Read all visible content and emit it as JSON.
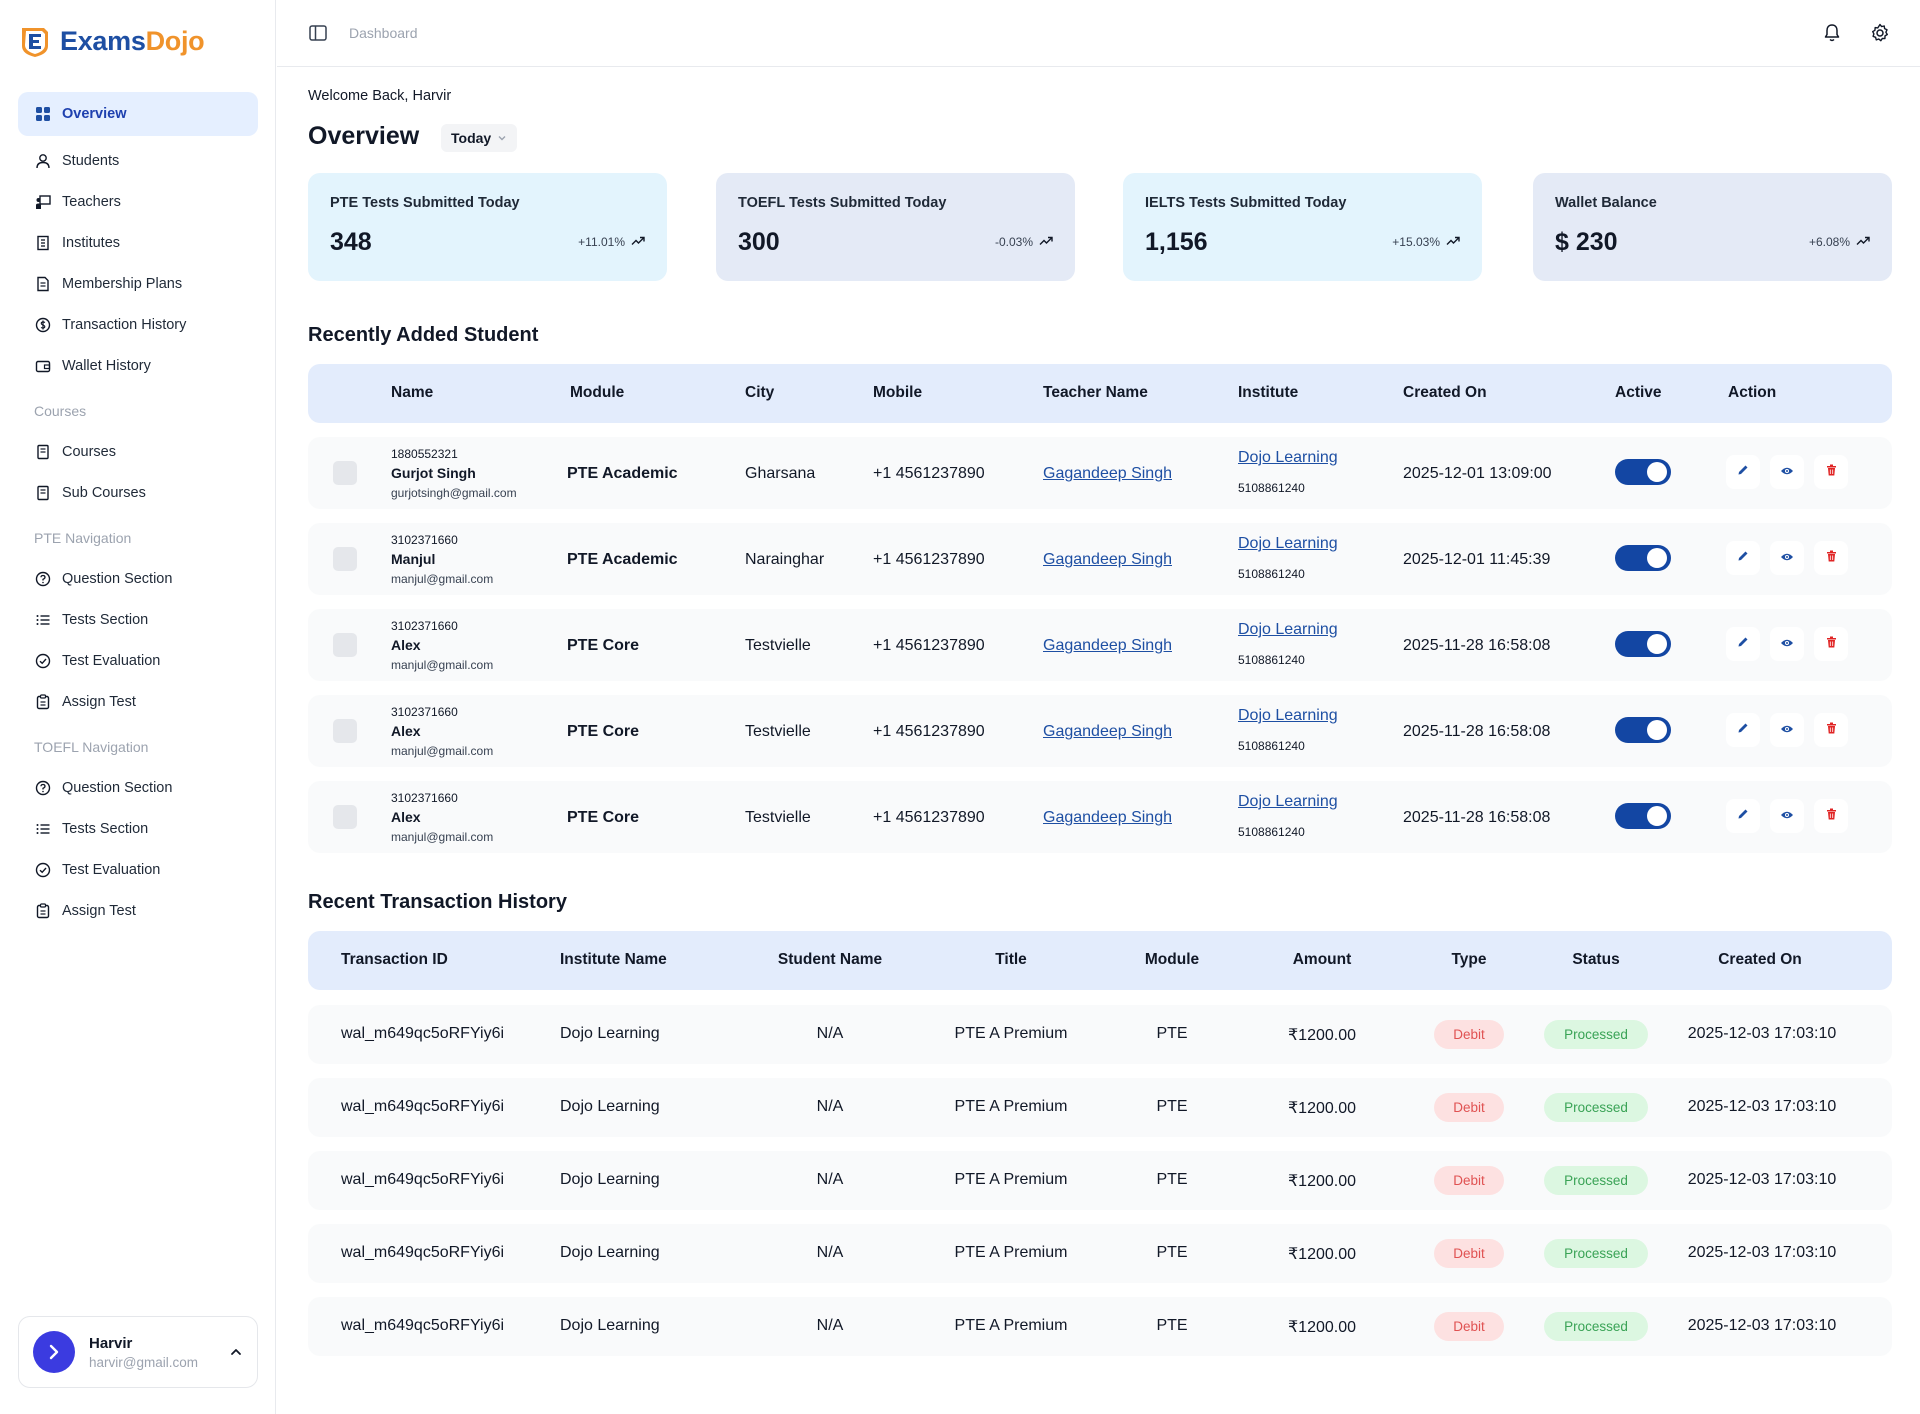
{
  "brand": {
    "part1": "Exams",
    "part2": "Dojo"
  },
  "colors": {
    "primary": "#1346a3",
    "accent": "#f0932b",
    "active_bg": "#e5efff",
    "table_header_bg": "#e3ecfc",
    "debit": "#e05252",
    "processed": "#3aa356"
  },
  "sidebar": {
    "items_main": [
      {
        "label": "Overview",
        "icon": "grid-icon",
        "active": true
      },
      {
        "label": "Students",
        "icon": "user-icon"
      },
      {
        "label": "Teachers",
        "icon": "teacher-icon"
      },
      {
        "label": "Institutes",
        "icon": "building-icon"
      },
      {
        "label": "Membership Plans",
        "icon": "document-icon"
      },
      {
        "label": "Transaction History",
        "icon": "dollar-circle-icon"
      },
      {
        "label": "Wallet History",
        "icon": "wallet-icon"
      }
    ],
    "section_courses": "Courses",
    "items_courses": [
      {
        "label": "Courses",
        "icon": "book-icon"
      },
      {
        "label": "Sub Courses",
        "icon": "book-icon"
      }
    ],
    "section_pte": "PTE Navigation",
    "items_pte": [
      {
        "label": "Question Section",
        "icon": "question-circle-icon"
      },
      {
        "label": "Tests Section",
        "icon": "list-icon"
      },
      {
        "label": "Test Evaluation",
        "icon": "check-circle-icon"
      },
      {
        "label": "Assign Test",
        "icon": "clipboard-icon"
      }
    ],
    "section_toefl": "TOEFL Navigation",
    "items_toefl": [
      {
        "label": "Question Section",
        "icon": "question-circle-icon"
      },
      {
        "label": "Tests Section",
        "icon": "list-icon"
      },
      {
        "label": "Test Evaluation",
        "icon": "check-circle-icon"
      },
      {
        "label": "Assign Test",
        "icon": "clipboard-icon"
      }
    ],
    "user": {
      "name": "Harvir",
      "email": "harvir@gmail.com"
    }
  },
  "topbar": {
    "breadcrumb": "Dashboard"
  },
  "main": {
    "welcome": "Welcome Back, Harvir",
    "title": "Overview",
    "range": "Today",
    "stats": [
      {
        "label": "PTE Tests Submitted Today",
        "value": "348",
        "delta": "+11.01%",
        "bg": "#e3f4fd"
      },
      {
        "label": "TOEFL Tests Submitted Today",
        "value": "300",
        "delta": "-0.03%",
        "bg": "#e4eaf6"
      },
      {
        "label": "IELTS Tests Submitted Today",
        "value": "1,156",
        "delta": "+15.03%",
        "bg": "#e3f4fd"
      },
      {
        "label": "Wallet Balance",
        "value": "$ 230",
        "delta": "+6.08%",
        "bg": "#e4eaf6"
      }
    ],
    "students_title": "Recently Added Student",
    "student_columns": [
      "Name",
      "Module",
      "City",
      "Mobile",
      "Teacher Name",
      "Institute",
      "Created On",
      "Active",
      "Action"
    ],
    "students": [
      {
        "id": "1880552321",
        "name": "Gurjot Singh",
        "email": "gurjotsingh@gmail.com",
        "module": "PTE Academic",
        "city": "Gharsana",
        "mobile": "+1 4561237890",
        "teacher": "Gagandeep Singh",
        "institute": "Dojo Learning",
        "institute_id": "5108861240",
        "created": "2025-12-01 13:09:00",
        "active": true
      },
      {
        "id": "3102371660",
        "name": "Manjul",
        "email": "manjul@gmail.com",
        "module": "PTE Academic",
        "city": "Narainghar",
        "mobile": "+1 4561237890",
        "teacher": "Gagandeep Singh",
        "institute": "Dojo Learning",
        "institute_id": "5108861240",
        "created": "2025-12-01 11:45:39",
        "active": true
      },
      {
        "id": "3102371660",
        "name": "Alex",
        "email": "manjul@gmail.com",
        "module": "PTE Core",
        "city": "Testvielle",
        "mobile": "+1 4561237890",
        "teacher": "Gagandeep Singh",
        "institute": "Dojo Learning",
        "institute_id": "5108861240",
        "created": "2025-11-28 16:58:08",
        "active": true
      },
      {
        "id": "3102371660",
        "name": "Alex",
        "email": "manjul@gmail.com",
        "module": "PTE Core",
        "city": "Testvielle",
        "mobile": "+1 4561237890",
        "teacher": "Gagandeep Singh",
        "institute": "Dojo Learning",
        "institute_id": "5108861240",
        "created": "2025-11-28 16:58:08",
        "active": true
      },
      {
        "id": "3102371660",
        "name": "Alex",
        "email": "manjul@gmail.com",
        "module": "PTE Core",
        "city": "Testvielle",
        "mobile": "+1 4561237890",
        "teacher": "Gagandeep Singh",
        "institute": "Dojo Learning",
        "institute_id": "5108861240",
        "created": "2025-11-28 16:58:08",
        "active": true
      }
    ],
    "transactions_title": "Recent Transaction History",
    "transaction_columns": [
      "Transaction ID",
      "Institute Name",
      "Student Name",
      "Title",
      "Module",
      "Amount",
      "Type",
      "Status",
      "Created On"
    ],
    "transactions": [
      {
        "id": "wal_m649qc5oRFYiy6i",
        "institute": "Dojo Learning",
        "student": "N/A",
        "title": "PTE A Premium",
        "module": "PTE",
        "amount": "₹1200.00",
        "type": "Debit",
        "status": "Processed",
        "created": "2025-12-03 17:03:10"
      },
      {
        "id": "wal_m649qc5oRFYiy6i",
        "institute": "Dojo Learning",
        "student": "N/A",
        "title": "PTE A Premium",
        "module": "PTE",
        "amount": "₹1200.00",
        "type": "Debit",
        "status": "Processed",
        "created": "2025-12-03 17:03:10"
      },
      {
        "id": "wal_m649qc5oRFYiy6i",
        "institute": "Dojo Learning",
        "student": "N/A",
        "title": "PTE A Premium",
        "module": "PTE",
        "amount": "₹1200.00",
        "type": "Debit",
        "status": "Processed",
        "created": "2025-12-03 17:03:10"
      },
      {
        "id": "wal_m649qc5oRFYiy6i",
        "institute": "Dojo Learning",
        "student": "N/A",
        "title": "PTE A Premium",
        "module": "PTE",
        "amount": "₹1200.00",
        "type": "Debit",
        "status": "Processed",
        "created": "2025-12-03 17:03:10"
      },
      {
        "id": "wal_m649qc5oRFYiy6i",
        "institute": "Dojo Learning",
        "student": "N/A",
        "title": "PTE A Premium",
        "module": "PTE",
        "amount": "₹1200.00",
        "type": "Debit",
        "status": "Processed",
        "created": "2025-12-03 17:03:10"
      }
    ]
  }
}
